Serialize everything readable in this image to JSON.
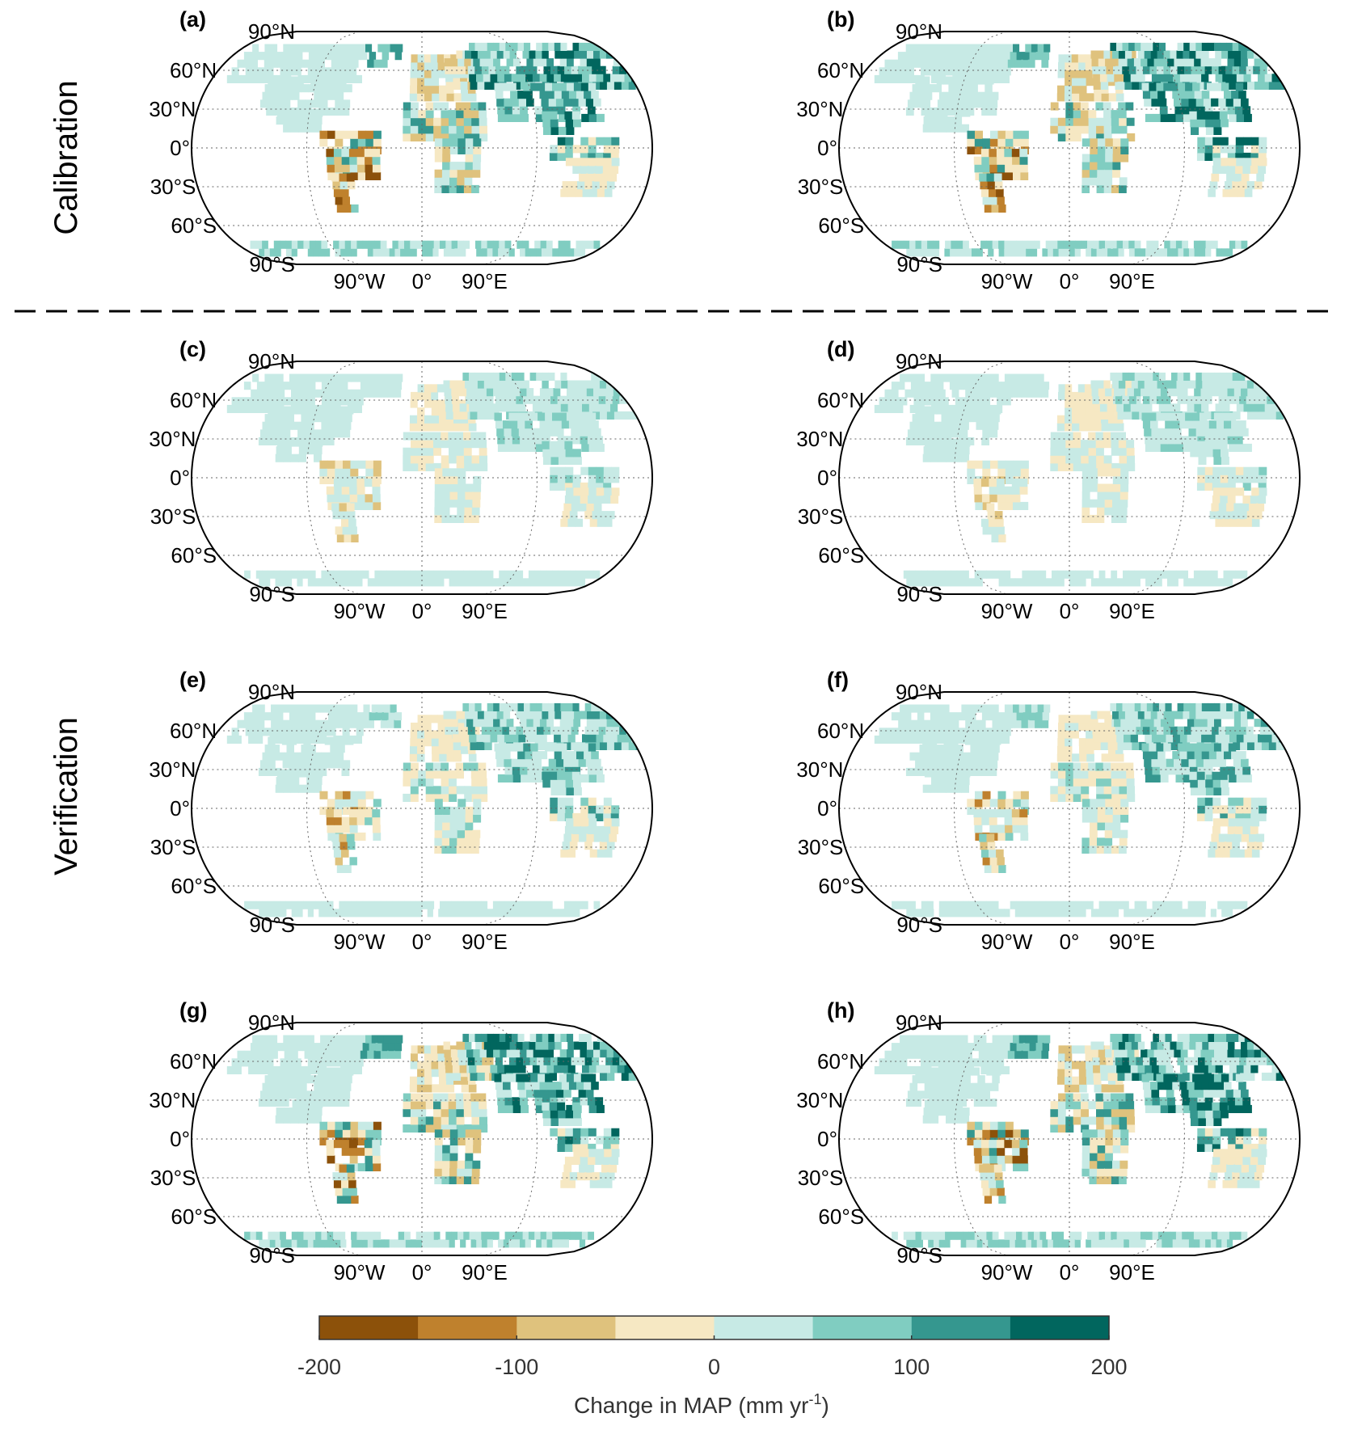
{
  "row_labels": {
    "top": "Calibration",
    "bottom": "Verification"
  },
  "panels": [
    {
      "label": "(a)",
      "pattern": "strong"
    },
    {
      "label": "(b)",
      "pattern": "strong"
    },
    {
      "label": "(c)",
      "pattern": "weak"
    },
    {
      "label": "(d)",
      "pattern": "weak"
    },
    {
      "label": "(e)",
      "pattern": "medium"
    },
    {
      "label": "(f)",
      "pattern": "medium"
    },
    {
      "label": "(g)",
      "pattern": "strong"
    },
    {
      "label": "(h)",
      "pattern": "strong"
    }
  ],
  "lat_labels": [
    "90°N",
    "60°N",
    "30°N",
    "0°",
    "30°S",
    "60°S",
    "90°S"
  ],
  "lon_labels": [
    "90°W",
    "0°",
    "90°E"
  ],
  "colorbar": {
    "colors": [
      "#8c510a",
      "#bf812d",
      "#dfc27d",
      "#f6e8c3",
      "#c7eae5",
      "#80cdc1",
      "#35978f",
      "#01665e"
    ],
    "ticks": [
      "-200",
      "-100",
      "0",
      "100",
      "200"
    ],
    "title_main": "Change in MAP (mm yr",
    "title_sup": "-1",
    "title_end": ")"
  }
}
